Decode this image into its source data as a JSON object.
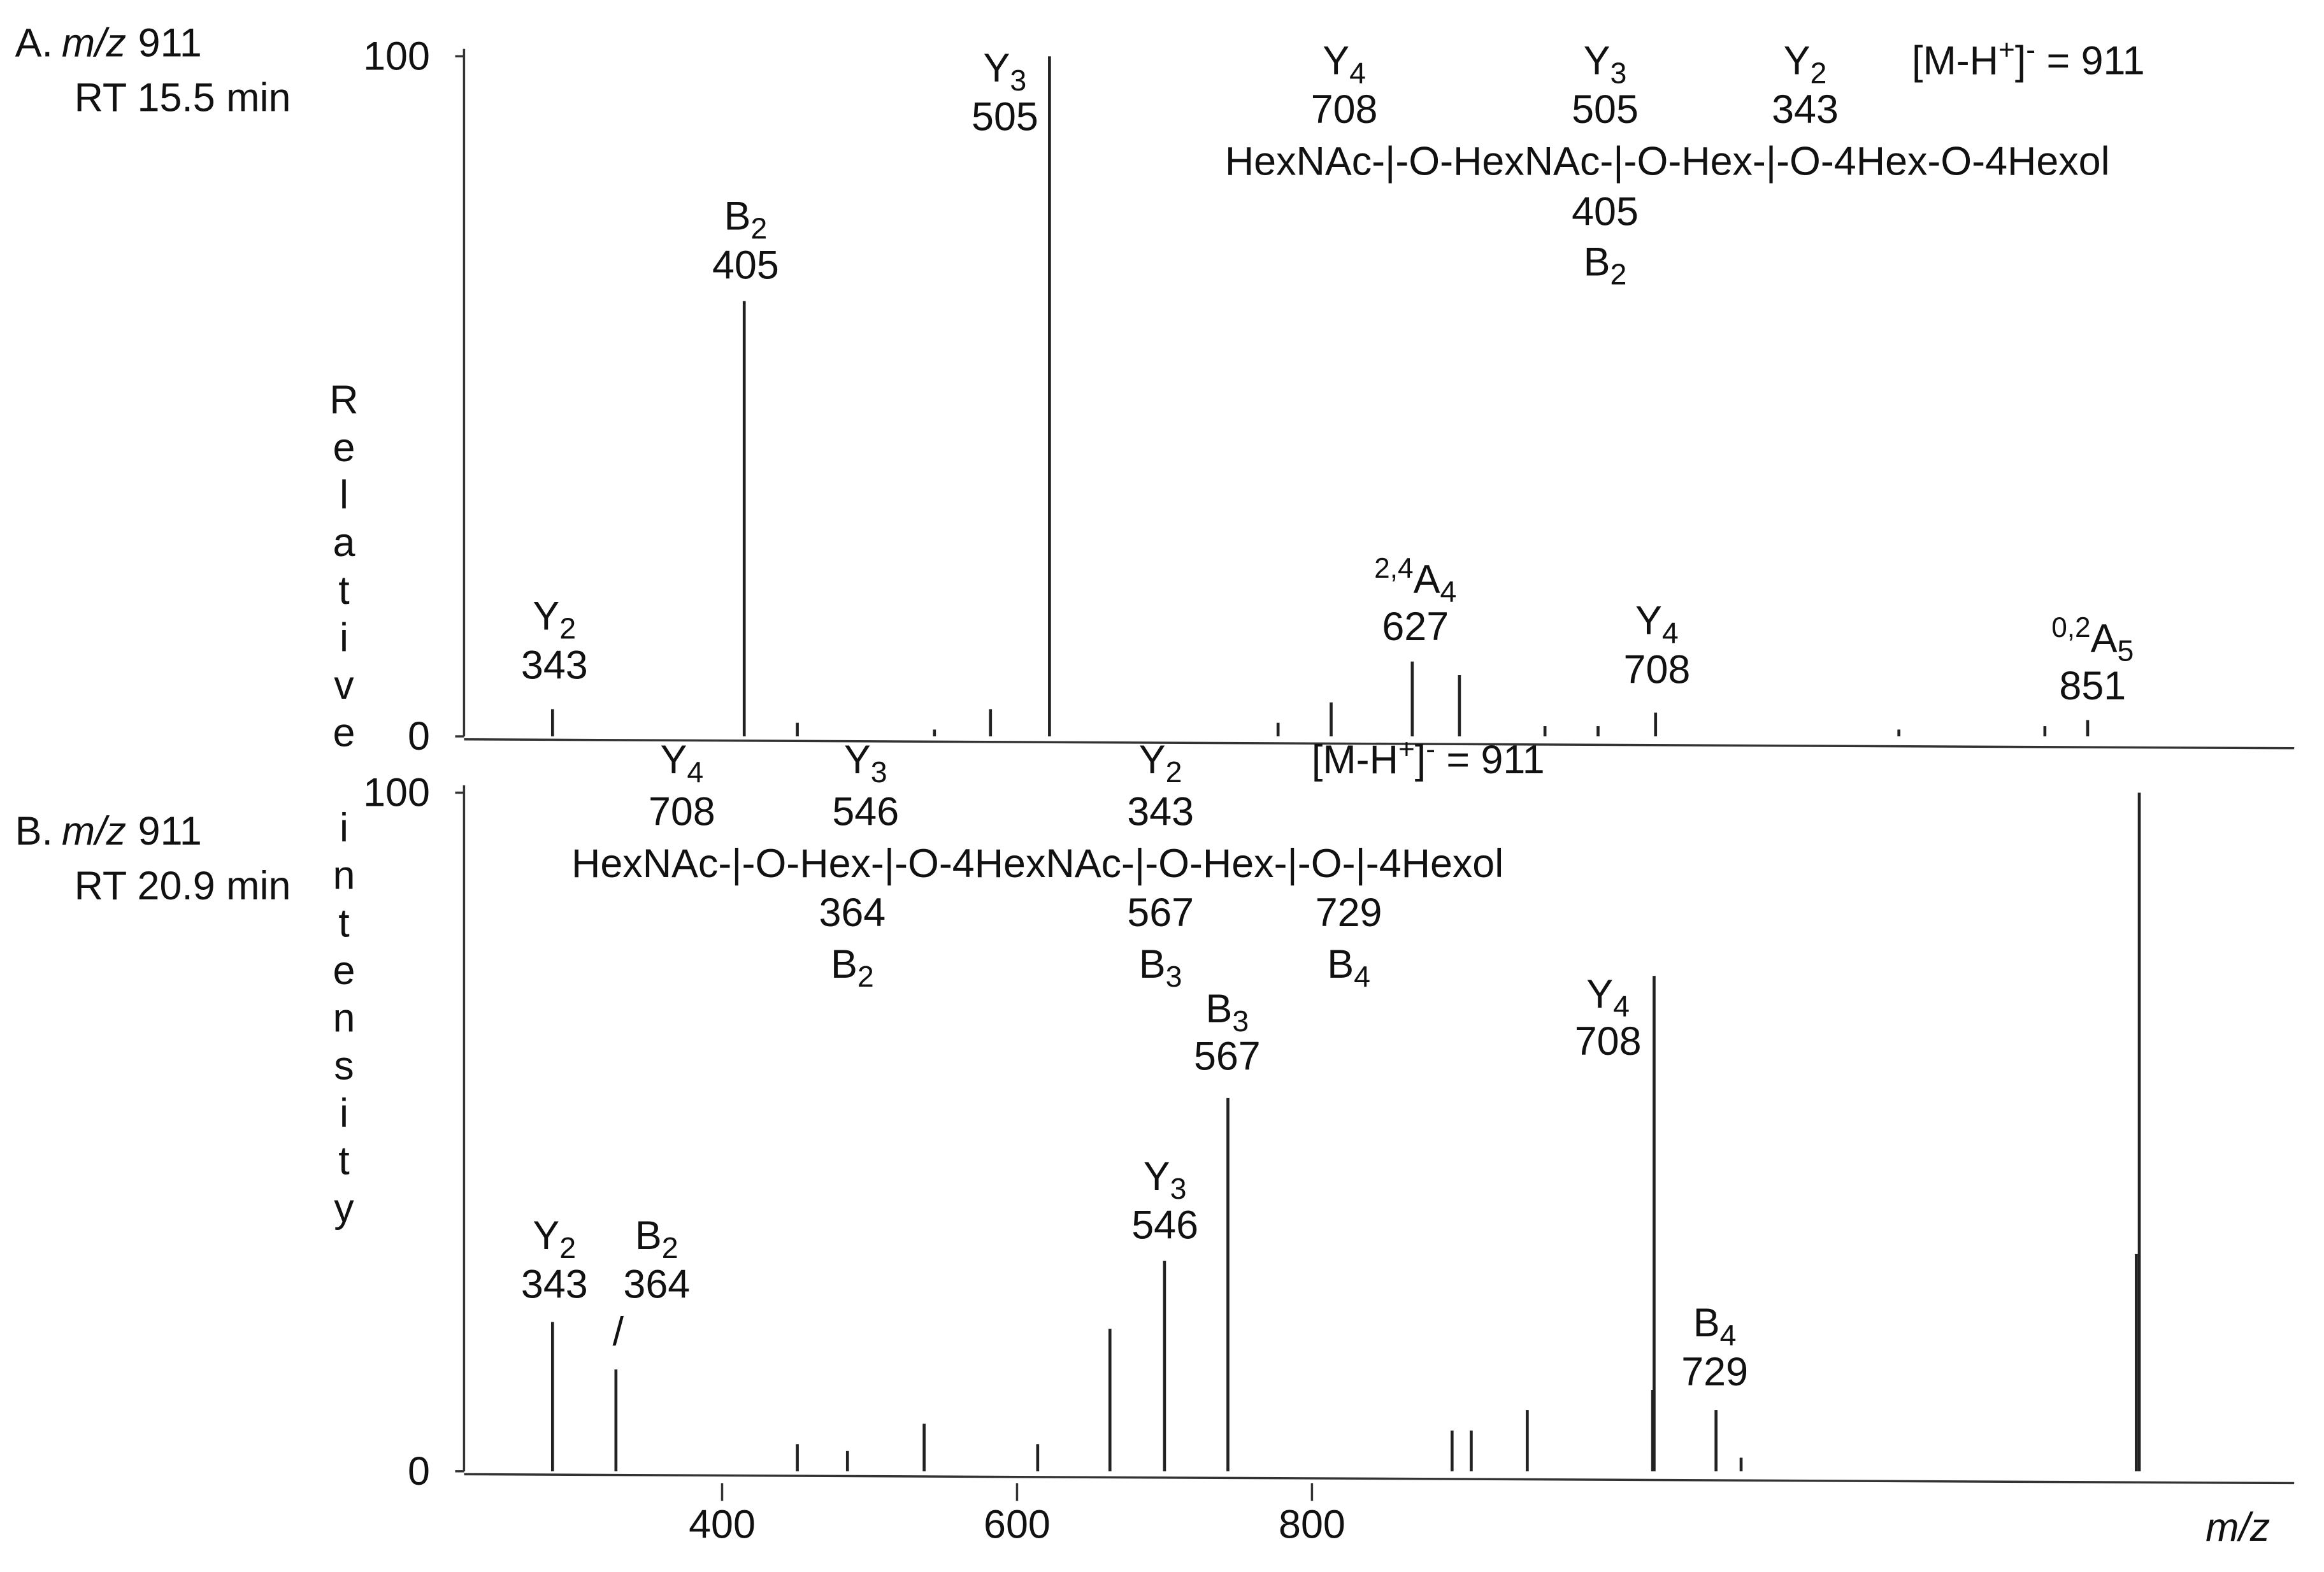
{
  "chart_data": [
    {
      "type": "bar",
      "panel": "A.",
      "mz_label": "m/z",
      "mz": "911",
      "rt": "RT 15.5 min",
      "y_label": "Relative intensity",
      "x": [
        285,
        415,
        622,
        582,
        868,
        900,
        813,
        1033,
        1326,
        1297,
        451,
        544,
        777,
        958,
        994,
        1198
      ],
      "values": [
        4,
        64,
        100,
        4,
        11,
        9,
        5,
        3.5,
        2.4,
        1.5,
        2,
        1,
        2,
        1.5,
        1.5,
        1
      ],
      "color": "#222222",
      "xlim": [
        225,
        1460
      ],
      "ylim": [
        0,
        100
      ],
      "yticks": [
        0,
        100
      ],
      "annotations": [
        {
          "ion": "Y",
          "sub": "2",
          "mz": "343"
        },
        {
          "ion": "B",
          "sub": "2",
          "mz": "405"
        },
        {
          "ion": "Y",
          "sub": "3",
          "mz": "505"
        },
        {
          "pre": "2,4",
          "ion": "A",
          "sub": "4",
          "mz": "627"
        },
        {
          "ion": "Y",
          "sub": "4",
          "mz": "708"
        },
        {
          "pre": "0,2",
          "ion": "A",
          "sub": "5",
          "mz": "851"
        }
      ],
      "structure": {
        "text": "HexNAc-|-O-HexNAc-|-O-Hex-|-O-4Hex-O-4Hexol",
        "above": [
          {
            "ion": "Y",
            "sub": "4",
            "mz": "708"
          },
          {
            "ion": "Y",
            "sub": "3",
            "mz": "505"
          },
          {
            "ion": "Y",
            "sub": "2",
            "mz": "343"
          }
        ],
        "below": [
          {
            "mz": "405",
            "ion": "B",
            "sub": "2"
          }
        ]
      },
      "precursor": {
        "head": "[M-H",
        "sup1": "+",
        "mid": "]",
        "sup2": "-",
        "tail": " = 911"
      }
    },
    {
      "type": "bar",
      "panel": "B.",
      "mz_label": "m/z",
      "mz": "911",
      "rt": "RT 20.9 min",
      "x_label": "m/z",
      "x": [
        285,
        328,
        663,
        700,
        743,
        1032,
        1074,
        1361,
        946,
        895,
        908,
        537,
        614,
        451,
        1031,
        1359,
        485,
        1091
      ],
      "values": [
        22,
        15,
        21,
        31,
        55,
        73,
        9,
        100,
        9,
        6,
        6,
        7,
        4,
        4,
        12,
        32,
        3,
        2
      ],
      "color": "#222222",
      "xlim": [
        225,
        1460
      ],
      "ylim": [
        0,
        100
      ],
      "yticks": [
        0,
        100
      ],
      "xticks": [
        400,
        600,
        800
      ],
      "annotations": [
        {
          "ion": "Y",
          "sub": "2",
          "mz": "343"
        },
        {
          "ion": "B",
          "sub": "2",
          "mz": "364",
          "mark": "/"
        },
        {
          "ion": "Y",
          "sub": "3",
          "mz": "546"
        },
        {
          "ion": "B",
          "sub": "3",
          "mz": "567"
        },
        {
          "ion": "Y",
          "sub": "4",
          "mz": "708"
        },
        {
          "ion": "B",
          "sub": "4",
          "mz": "729"
        }
      ],
      "structure": {
        "text": "HexNAc-|-O-Hex-|-O-4HexNAc-|-O-Hex-|-O-|-4Hexol",
        "above": [
          {
            "ion": "Y",
            "sub": "4",
            "mz": "708"
          },
          {
            "ion": "Y",
            "sub": "3",
            "mz": "546"
          },
          {
            "ion": "Y",
            "sub": "2",
            "mz": "343"
          }
        ],
        "below": [
          {
            "mz": "364",
            "ion": "B",
            "sub": "2"
          },
          {
            "mz": "567",
            "ion": "B",
            "sub": "3"
          },
          {
            "mz": "729",
            "ion": "B",
            "sub": "4"
          }
        ]
      },
      "precursor": {
        "head": "[M-H",
        "sup1": "+",
        "mid": "]",
        "sup2": "-",
        "tail": " = 911"
      }
    }
  ]
}
